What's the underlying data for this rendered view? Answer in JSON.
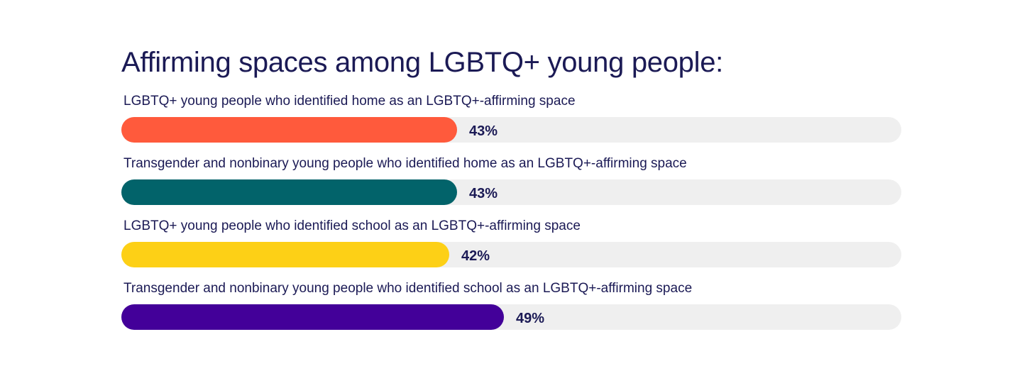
{
  "chart_data": {
    "type": "bar",
    "orientation": "horizontal",
    "title": "Affirming spaces among LGBTQ+ young people:",
    "xlim": [
      0,
      100
    ],
    "grid": false,
    "legend": "none",
    "bars": [
      {
        "label": "LGBTQ+ young people who identified home as an LGBTQ+-affirming space",
        "value": 43,
        "value_label": "43%",
        "color": "#ff5a3c"
      },
      {
        "label": "Transgender and nonbinary young people who identified home as an LGBTQ+-affirming space",
        "value": 43,
        "value_label": "43%",
        "color": "#02636a"
      },
      {
        "label": "LGBTQ+ young people who identified school as an LGBTQ+-affirming space",
        "value": 42,
        "value_label": "42%",
        "color": "#fdd016"
      },
      {
        "label": "Transgender and nonbinary young people who identified school as an LGBTQ+-affirming space",
        "value": 49,
        "value_label": "49%",
        "color": "#430099"
      }
    ],
    "track_color": "#efefef",
    "text_color": "#1b1a55"
  }
}
